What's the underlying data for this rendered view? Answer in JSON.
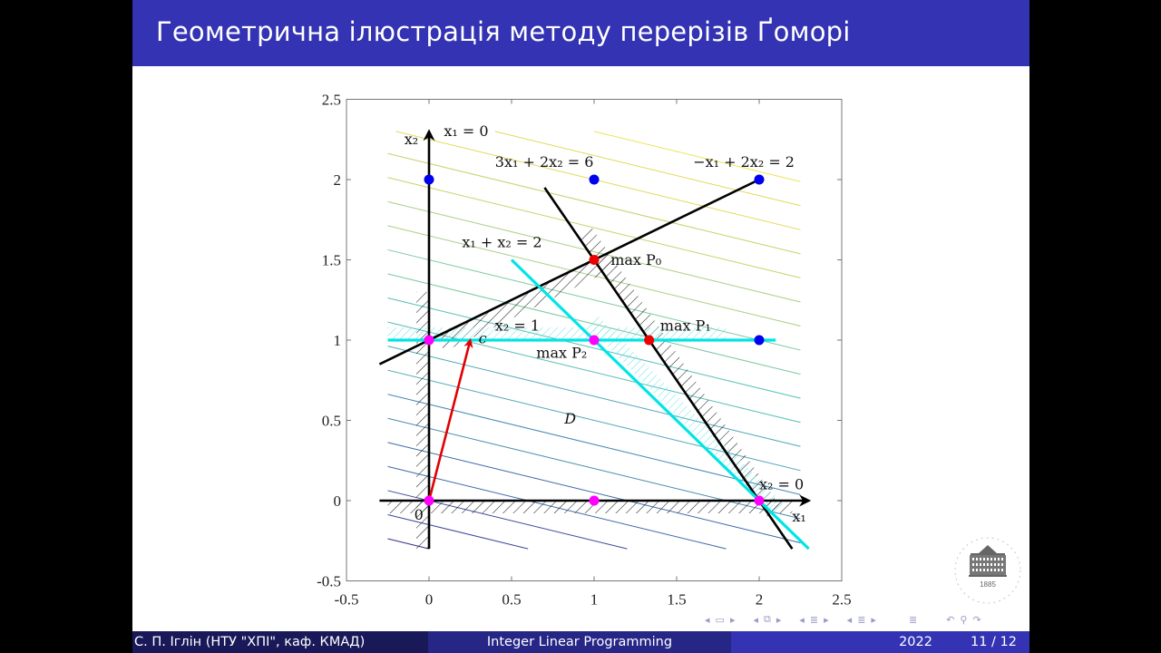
{
  "slide": {
    "title": "Геометрична ілюстрація методу перерізів Ґоморі",
    "footer": {
      "author": "С. П. Іглін  (НТУ \"ХПІ\", каф. КМАД)",
      "course": "Integer Linear Programming",
      "year": "2022",
      "page": "11 / 12"
    },
    "nav_icons": [
      "nav-prev-frame-icon",
      "nav-frame-icon",
      "nav-next-frame-icon",
      "nav-prev-slide-icon",
      "nav-slide-icon",
      "nav-next-slide-icon",
      "nav-prev-section-icon",
      "nav-section-icon",
      "nav-next-section-icon",
      "nav-prev-subsection-icon",
      "nav-subsection-icon",
      "nav-next-subsection-icon",
      "nav-document-icon",
      "nav-back-icon",
      "nav-search-icon",
      "nav-forward-icon"
    ],
    "logo": {
      "year": "1885",
      "icon": "university-building-icon"
    },
    "colors": {
      "title_bar": "#3333b3",
      "footer_left": "#191959",
      "footer_mid": "#262686",
      "footer_right": "#3333b3"
    }
  },
  "chart_data": {
    "type": "line",
    "title": "",
    "xlabel": "x₁",
    "ylabel": "x₂",
    "xlim": [
      -0.5,
      2.5
    ],
    "ylim": [
      -0.5,
      2.5
    ],
    "xticks": [
      "-0.5",
      "0",
      "0.5",
      "1",
      "1.5",
      "2",
      "2.5"
    ],
    "yticks": [
      "-0.5",
      "0",
      "0.5",
      "1",
      "1.5",
      "2",
      "2.5"
    ],
    "xtick_values": [
      -0.5,
      0,
      0.5,
      1,
      1.5,
      2,
      2.5
    ],
    "ytick_values": [
      -0.5,
      0,
      0.5,
      1,
      1.5,
      2,
      2.5
    ],
    "grid": false,
    "pixel_map": {
      "x0": 473,
      "xscale": 182,
      "y0": 552,
      "yscale": 177
    },
    "objective_vector": {
      "label": "c",
      "from": [
        0,
        0
      ],
      "to": [
        0.25,
        1
      ],
      "color": "#e00000"
    },
    "contour_levels": {
      "direction": [
        0.25,
        1
      ],
      "x_range": [
        -0.25,
        2.25
      ],
      "levels": [
        -0.3,
        -0.15,
        0.0,
        0.15,
        0.3,
        0.45,
        0.6,
        0.75,
        0.9,
        1.05,
        1.2,
        1.35,
        1.5,
        1.65,
        1.8,
        1.95,
        2.1,
        2.25,
        2.4,
        2.55
      ],
      "colormap": [
        "#3b2c8a",
        "#3d4a9b",
        "#3e6aa8",
        "#4a8ab3",
        "#4fa7b8",
        "#52bfb7",
        "#7cc9a0",
        "#a9cf82",
        "#cbd16b",
        "#e6d75c",
        "#f0e35a"
      ]
    },
    "constraints": [
      {
        "label": "x₁ = 0",
        "points": [
          [
            0,
            -0.3
          ],
          [
            0,
            2.3
          ]
        ],
        "arrow": true,
        "axis_label": "x₂",
        "color": "#000000"
      },
      {
        "label": "x₂ = 0",
        "points": [
          [
            -0.3,
            0
          ],
          [
            2.3,
            0
          ]
        ],
        "arrow": true,
        "axis_label": "x₁",
        "color": "#000000"
      },
      {
        "label": "3x₁ + 2x₂ = 6",
        "points": [
          [
            0.7,
            1.95
          ],
          [
            2.2,
            -0.3
          ]
        ],
        "color": "#000000"
      },
      {
        "label": "−x₁ + 2x₂ = 2",
        "points": [
          [
            -0.3,
            0.85
          ],
          [
            2,
            2
          ]
        ],
        "color": "#000000"
      },
      {
        "label": "x₁ + x₂ = 2",
        "points": [
          [
            0.5,
            1.5
          ],
          [
            2.3,
            -0.3
          ]
        ],
        "color": "#00e5e5",
        "cut": true
      },
      {
        "label": "x₂ = 1",
        "points": [
          [
            -0.25,
            1
          ],
          [
            2.1,
            1
          ]
        ],
        "color": "#00e5e5",
        "cut": true
      }
    ],
    "points": [
      {
        "x": 0,
        "y": 2,
        "color": "#0000ee",
        "role": "integer"
      },
      {
        "x": 1,
        "y": 2,
        "color": "#0000ee",
        "role": "integer"
      },
      {
        "x": 2,
        "y": 2,
        "color": "#0000ee",
        "role": "integer"
      },
      {
        "x": 2,
        "y": 1,
        "color": "#0000ee",
        "role": "integer"
      },
      {
        "x": 1,
        "y": 1.5,
        "color": "#ee0000",
        "label": "max P₀"
      },
      {
        "x": 1.333,
        "y": 1,
        "color": "#ee0000",
        "label": "max P₁"
      },
      {
        "x": 1,
        "y": 1,
        "color": "#ff00ff",
        "label": "max P₂"
      },
      {
        "x": 0,
        "y": 1,
        "color": "#ff00ff"
      },
      {
        "x": 0,
        "y": 0,
        "color": "#ff00ff"
      },
      {
        "x": 1,
        "y": 0,
        "color": "#ff00ff"
      },
      {
        "x": 2,
        "y": 0,
        "color": "#ff00ff"
      }
    ],
    "annotations": [
      {
        "text": "x₁ = 0",
        "x": 0.09,
        "y": 2.27
      },
      {
        "text": "x₂",
        "x": -0.15,
        "y": 2.22
      },
      {
        "text": "3x₁ + 2x₂ = 6",
        "x": 0.4,
        "y": 2.08
      },
      {
        "text": "−x₁ + 2x₂ = 2",
        "x": 1.6,
        "y": 2.08
      },
      {
        "text": "x₁ + x₂ = 2",
        "x": 0.2,
        "y": 1.58
      },
      {
        "text": "max P₀",
        "x": 1.1,
        "y": 1.47
      },
      {
        "text": "x₂ = 1",
        "x": 0.4,
        "y": 1.06
      },
      {
        "text": "max P₁",
        "x": 1.4,
        "y": 1.06
      },
      {
        "text": "max P₂",
        "x": 0.65,
        "y": 0.89
      },
      {
        "text": "c",
        "x": 0.3,
        "y": 0.98
      },
      {
        "text": "D",
        "x": 0.82,
        "y": 0.48
      },
      {
        "text": "0",
        "x": -0.09,
        "y": -0.12
      },
      {
        "text": "x₂ = 0",
        "x": 2.0,
        "y": 0.07
      },
      {
        "text": "x₁",
        "x": 2.2,
        "y": -0.13
      }
    ]
  }
}
